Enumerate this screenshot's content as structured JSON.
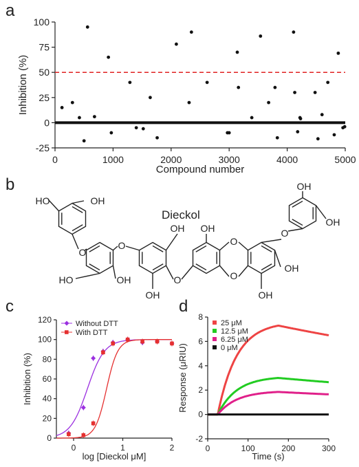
{
  "panels": {
    "a": "a",
    "b": "b",
    "c": "c",
    "d": "d"
  },
  "chart_data": [
    {
      "panel": "a",
      "type": "scatter",
      "xlabel": "Compound number",
      "ylabel": "Inhibition (%)",
      "xlim": [
        0,
        5000
      ],
      "ylim": [
        -25,
        100
      ],
      "xticks": [
        0,
        1000,
        2000,
        3000,
        4000,
        5000
      ],
      "yticks": [
        -25,
        0,
        25,
        50,
        75,
        100
      ],
      "threshold": 50,
      "threshold_color": "#e02020",
      "baseline_y": 0,
      "series": [
        {
          "color": "#111111",
          "x": [
            120,
            300,
            420,
            500,
            560,
            680,
            920,
            970,
            1290,
            1400,
            1520,
            1640,
            1760,
            2090,
            2310,
            2350,
            2620,
            2970,
            3000,
            3140,
            3160,
            3390,
            3540,
            3680,
            3790,
            3830,
            4110,
            4130,
            4180,
            4220,
            4230,
            4480,
            4530,
            4600,
            4700,
            4810,
            4880,
            4960,
            4990
          ],
          "y": [
            15,
            20,
            5,
            -18,
            95,
            6,
            65,
            -10,
            40,
            -5,
            -6,
            25,
            -15,
            78,
            20,
            90,
            40,
            -10,
            -10,
            70,
            35,
            5,
            86,
            20,
            35,
            -15,
            90,
            30,
            -9,
            5,
            4,
            30,
            -16,
            8,
            40,
            -12,
            69,
            -5,
            -4
          ]
        }
      ]
    },
    {
      "panel": "c",
      "type": "line",
      "xlabel": "log [Dieckol μM]",
      "ylabel": "Inhibition (%)",
      "xlim": [
        -0.35,
        2.0
      ],
      "ylim": [
        0,
        120
      ],
      "xticks": [
        0,
        1,
        2
      ],
      "yticks": [
        0,
        20,
        40,
        60,
        80,
        100,
        120
      ],
      "legend_position": "top-left",
      "series": [
        {
          "name": "Without DTT",
          "color": "#9b30e0",
          "marker": "diamond",
          "x": [
            -0.1,
            0.2,
            0.4,
            0.6,
            0.8,
            1.1,
            1.4,
            1.7,
            2.0
          ],
          "y": [
            5,
            31,
            81,
            88,
            97,
            100,
            97,
            98,
            96
          ],
          "fit": {
            "bottom": 0,
            "top": 100,
            "logEC50": 0.28,
            "hill": 2.5
          }
        },
        {
          "name": "With DTT",
          "color": "#e53030",
          "marker": "square",
          "x": [
            -0.1,
            0.2,
            0.4,
            0.6,
            0.8,
            1.1,
            1.4,
            1.7,
            2.0
          ],
          "y": [
            4,
            3,
            15,
            87,
            96,
            100,
            98,
            98,
            96
          ],
          "fit": {
            "bottom": 0,
            "top": 100,
            "logEC50": 0.67,
            "hill": 3.8
          }
        }
      ]
    },
    {
      "panel": "d",
      "type": "line",
      "xlabel": "Time (s)",
      "ylabel": "Response (μRIU)",
      "xlim": [
        0,
        300
      ],
      "ylim": [
        -2,
        8
      ],
      "xticks": [
        0,
        100,
        200,
        300
      ],
      "yticks": [
        -2,
        0,
        2,
        4,
        6,
        8
      ],
      "legend_position": "top-left",
      "series": [
        {
          "name": "25 μM",
          "color": "#ee4444",
          "t_on": 25,
          "t_off": 175,
          "peak": 7.3,
          "end": 6.5
        },
        {
          "name": "12.5 μM",
          "color": "#22cc22",
          "t_on": 25,
          "t_off": 175,
          "peak": 3.0,
          "end": 2.65
        },
        {
          "name": "6.25 μM",
          "color": "#e0208a",
          "t_on": 25,
          "t_off": 175,
          "peak": 1.85,
          "end": 1.65
        },
        {
          "name": "0 μM",
          "color": "#111111",
          "t_on": 25,
          "t_off": 175,
          "peak": 0,
          "end": 0
        }
      ]
    }
  ],
  "structure": {
    "name": "Dieckol",
    "oh_label": "HO",
    "oh_label_right": "OH",
    "oxygen_label": "O"
  }
}
